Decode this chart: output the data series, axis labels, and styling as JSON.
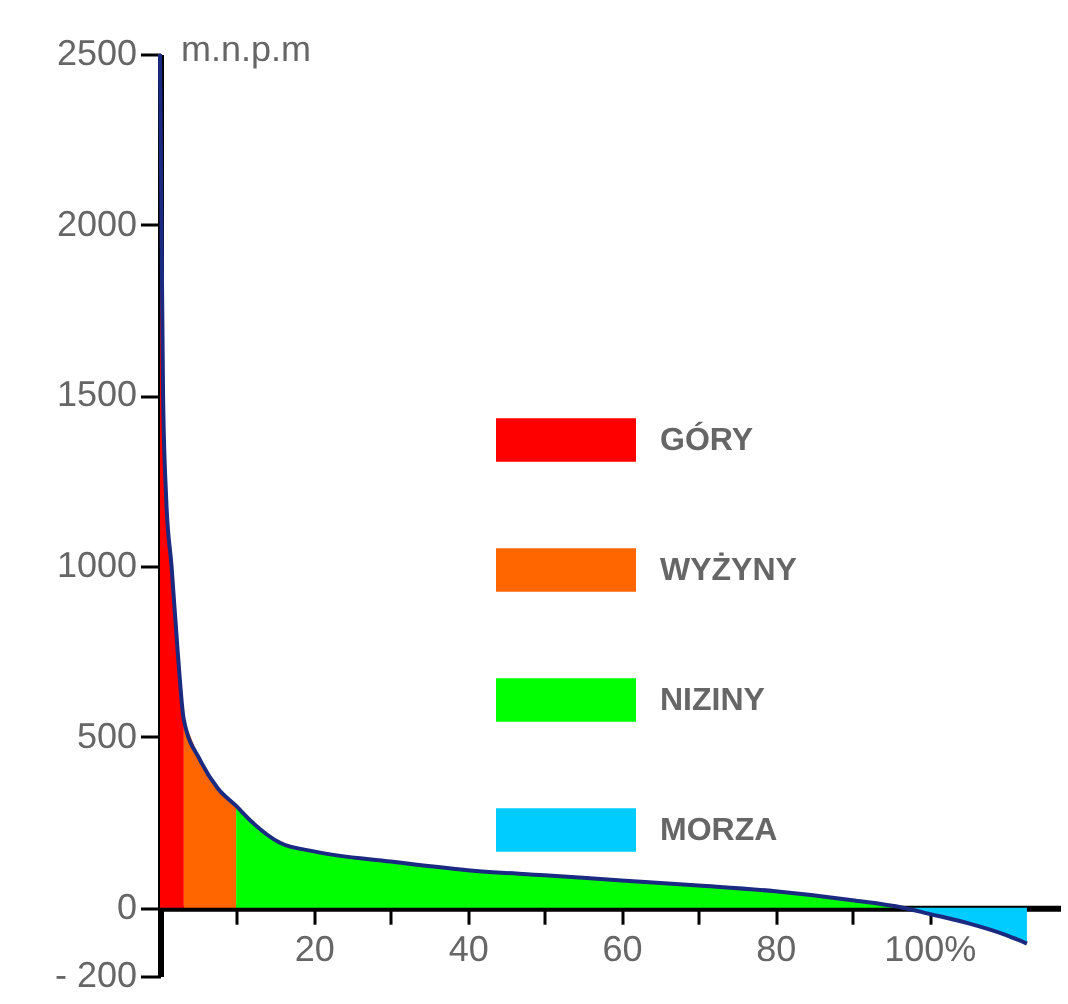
{
  "chart_data": {
    "type": "area",
    "ylabel": "m.n.p.m",
    "xlim": [
      0,
      117
    ],
    "ylim": [
      -200,
      2500
    ],
    "xticks": [
      {
        "value": 10,
        "label": null
      },
      20,
      {
        "value": 30,
        "label": null
      },
      40,
      {
        "value": 50,
        "label": null
      },
      60,
      {
        "value": 70,
        "label": null
      },
      80,
      {
        "value": 90,
        "label": null
      },
      {
        "value": 100,
        "label": "100%"
      }
    ],
    "yticks": [
      {
        "value": -200,
        "label": "- 200"
      },
      0,
      500,
      1000,
      1500,
      2000,
      2500
    ],
    "legend": "right",
    "grid": false,
    "series": [
      {
        "name": "GÓRY",
        "color": "#ff0000",
        "x": [
          0,
          0.2,
          0.4,
          0.8,
          1.5,
          2.3,
          3.1
        ],
        "values": [
          2500,
          2000,
          1500,
          1200,
          1000,
          750,
          550
        ]
      },
      {
        "name": "WYŻYNY",
        "color": "#ff6600",
        "x": [
          3.1,
          5.2,
          7.5,
          9.9
        ],
        "values": [
          550,
          433,
          350,
          298
        ]
      },
      {
        "name": "NIZINY",
        "color": "#00ff00",
        "x": [
          9.9,
          12,
          15.6,
          20,
          30,
          40,
          50,
          60,
          70,
          80,
          90,
          96.6
        ],
        "values": [
          298,
          250,
          190,
          165,
          135,
          110,
          95,
          80,
          65,
          48,
          22,
          0
        ]
      },
      {
        "name": "MORZA",
        "color": "#00ccff",
        "x": [
          96.6,
          100,
          105,
          110,
          112.7
        ],
        "values": [
          0,
          -18,
          -45,
          -80,
          -105
        ]
      },
      {
        "color": "#1a2a80",
        "type": "line",
        "x": [
          0,
          0.2,
          0.4,
          0.8,
          1.5,
          2.3,
          3.1,
          5.2,
          7.5,
          9.9,
          12,
          15.6,
          20,
          30,
          40,
          50,
          60,
          70,
          80,
          90,
          96.6,
          100,
          105,
          110,
          112.7
        ],
        "values": [
          2500,
          2000,
          1500,
          1200,
          1000,
          750,
          550,
          433,
          350,
          298,
          250,
          190,
          165,
          135,
          110,
          95,
          80,
          65,
          48,
          22,
          0,
          -18,
          -45,
          -80,
          -105
        ]
      }
    ]
  }
}
